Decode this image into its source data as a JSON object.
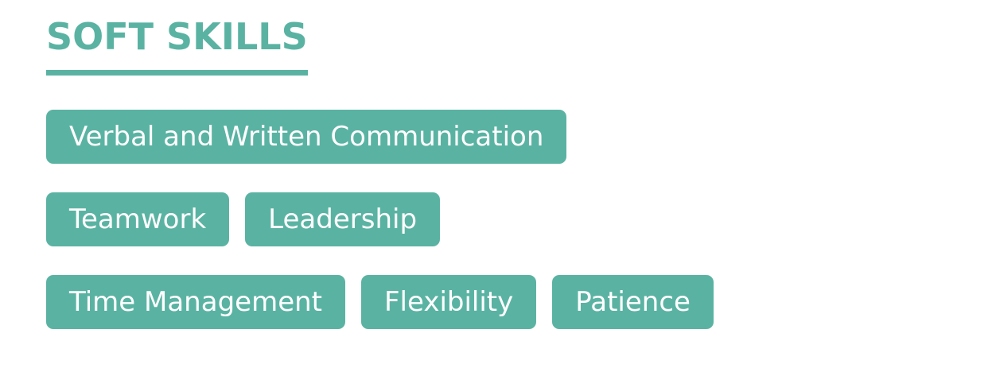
{
  "section": {
    "title": "SOFT SKILLS",
    "accent_color": "#5ab3a2"
  },
  "skills": [
    "Verbal and Written Communication",
    "Teamwork",
    "Leadership",
    "Time Management",
    "Flexibility",
    "Patience"
  ]
}
